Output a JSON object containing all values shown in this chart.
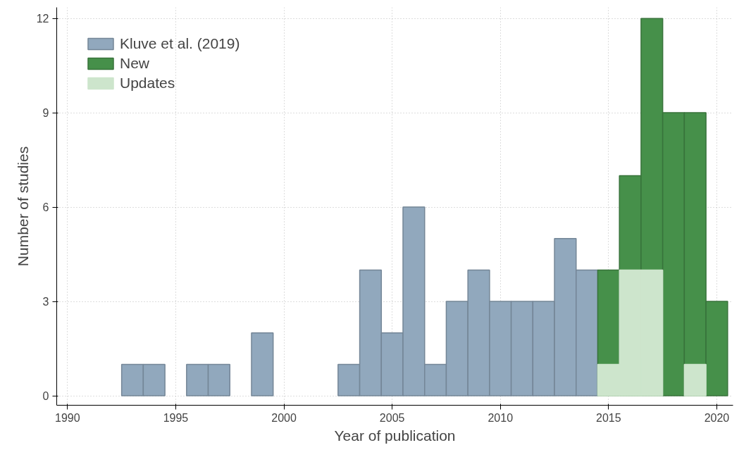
{
  "chart_data": {
    "type": "bar",
    "xlabel": "Year of publication",
    "ylabel": "Number of studies",
    "xlim": [
      1989.5,
      2020.75
    ],
    "xticks": [
      1990,
      1995,
      2000,
      2005,
      2010,
      2015,
      2020
    ],
    "ylim": [
      -0.3,
      12.35
    ],
    "yticks": [
      0,
      3,
      6,
      9,
      12
    ],
    "grid": true,
    "legend": "top left",
    "line_style": "dotted",
    "series": [
      {
        "name": "Kluve et al. (2019)",
        "color": "#91a8bd",
        "x": [
          1993,
          1994,
          1996,
          1997,
          1999,
          2003,
          2004,
          2005,
          2006,
          2007,
          2008,
          2009,
          2010,
          2011,
          2012,
          2013,
          2014
        ],
        "values": [
          1,
          1,
          1,
          1,
          2,
          1,
          4,
          2,
          6,
          1,
          3,
          4,
          3,
          3,
          3,
          5,
          4
        ]
      },
      {
        "name": "New",
        "color": "#46904a",
        "x": [
          2015,
          2016,
          2017,
          2018,
          2019,
          2020
        ],
        "values": [
          4,
          7,
          12,
          9,
          9,
          3
        ]
      },
      {
        "name": "Updates",
        "color": "#cde5cc",
        "x": [
          2015,
          2016,
          2017,
          2019
        ],
        "values": [
          1,
          4,
          4,
          1
        ]
      }
    ]
  }
}
